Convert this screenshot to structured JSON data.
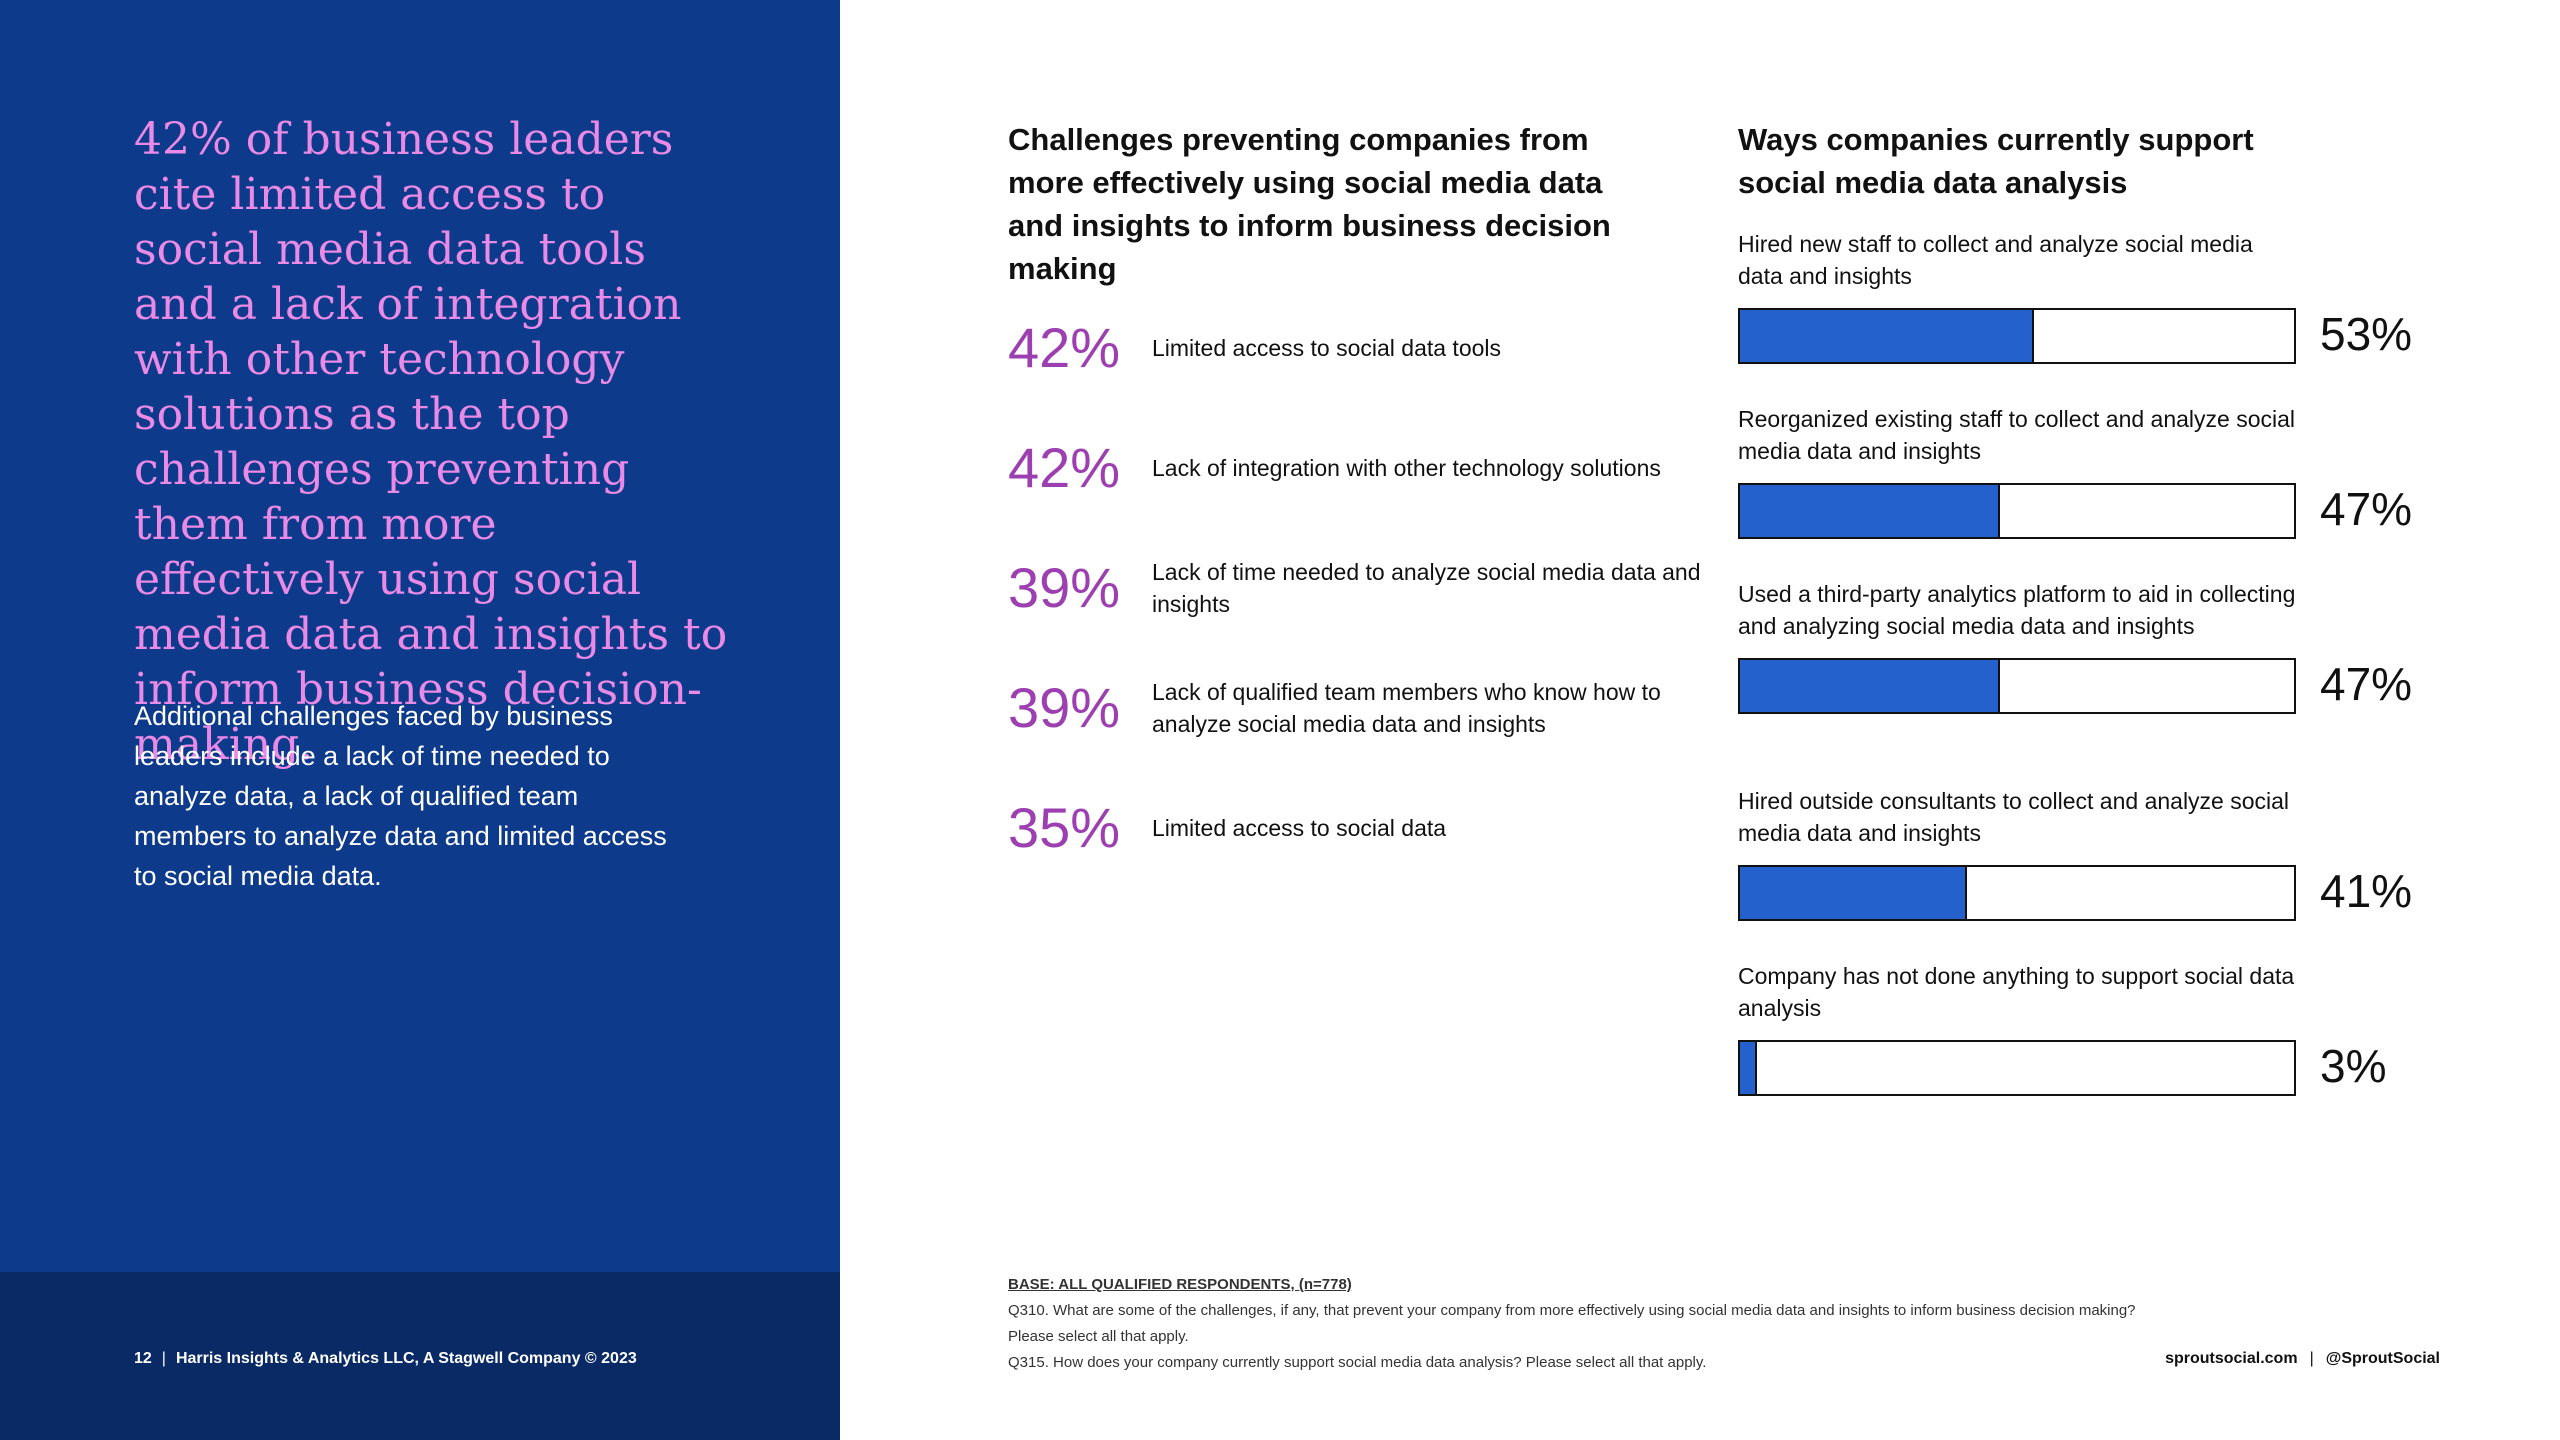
{
  "left": {
    "headline": "42% of business leaders cite limited access to social media data tools and a lack of integration with other technology solutions as the top challenges preventing them from more effectively using social media data and insights to inform business decision-making.",
    "subtext": "Additional challenges faced by business leaders include a lack of time needed to analyze data, a lack of qualified team members to analyze data and limited access to social media data.",
    "footer": {
      "page_number": "12",
      "separator": "|",
      "credit": "Harris Insights & Analytics LLC, A Stagwell Company © 2023"
    }
  },
  "challenges": {
    "title": "Challenges preventing companies from more effectively using social media data and insights to inform business decision making",
    "items": [
      {
        "pct": "42%",
        "label": "Limited access to social data tools"
      },
      {
        "pct": "42%",
        "label": "Lack of integration with other technology solutions"
      },
      {
        "pct": "39%",
        "label": "Lack of time needed to analyze social media data and insights"
      },
      {
        "pct": "39%",
        "label": "Lack of qualified team members who know how to analyze social media data and insights"
      },
      {
        "pct": "35%",
        "label": "Limited access to social data"
      }
    ]
  },
  "support": {
    "title": "Ways companies currently support social media data analysis",
    "items": [
      {
        "label": "Hired new staff to collect and analyze social media data and insights",
        "value": 53,
        "value_label": "53%"
      },
      {
        "label": "Reorganized existing staff to collect and analyze social media data and insights",
        "value": 47,
        "value_label": "47%"
      },
      {
        "label": "Used a third-party analytics platform to aid in collecting and analyzing social media data and insights",
        "value": 47,
        "value_label": "47%"
      },
      {
        "label": "Hired outside consultants to collect and analyze social media data and insights",
        "value": 41,
        "value_label": "41%"
      },
      {
        "label": "Company has not done anything to support social data analysis",
        "value": 3,
        "value_label": "3%"
      }
    ]
  },
  "footnotes": {
    "base": "BASE: ALL QUALIFIED RESPONDENTS, (n=778)",
    "q310": "Q310. What are some of the challenges, if any, that prevent your company from more effectively using social media data and insights to inform business decision making? Please select all that apply.",
    "q315": "Q315. How does your company currently support social media data analysis? Please select all that apply."
  },
  "brand": {
    "site": "sproutsocial.com",
    "separator": "|",
    "handle": "@SproutSocial"
  },
  "colors": {
    "panel": "#0d3a8a",
    "headline": "#e98ae6",
    "pct": "#9c3fb0",
    "bar": "#2461cc"
  }
}
